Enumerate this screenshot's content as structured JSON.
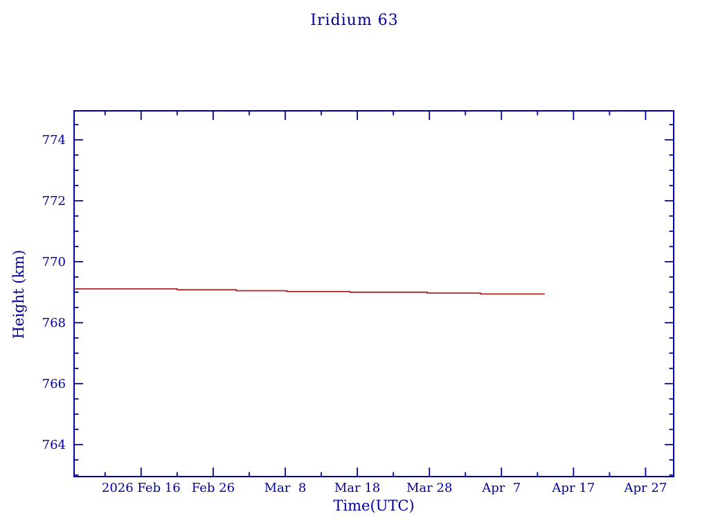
{
  "page": {
    "background": "#ffffff",
    "accent_blue": "#0000a0",
    "series_red": "#b22222"
  },
  "chart_data": {
    "type": "line",
    "title": "Iridium 63",
    "xlabel": "Time(UTC)",
    "ylabel": "Height (km)",
    "ylim": [
      762.95,
      774.95
    ],
    "y_major_ticks": [
      764,
      766,
      768,
      770,
      772,
      774
    ],
    "y_minor_step": 0.5,
    "x_unit": "days since 2026 Feb 16",
    "xlim_days": [
      -9.3,
      73.9
    ],
    "x_major_ticks": [
      {
        "day": 0,
        "label": "2026 Feb 16"
      },
      {
        "day": 10,
        "label": "Feb 26"
      },
      {
        "day": 20,
        "label": "Mar  8"
      },
      {
        "day": 30,
        "label": "Mar 18"
      },
      {
        "day": 40,
        "label": "Mar 28"
      },
      {
        "day": 50,
        "label": "Apr  7"
      },
      {
        "day": 60,
        "label": "Apr 17"
      },
      {
        "day": 70,
        "label": "Apr 27"
      }
    ],
    "x_minor_step_days": 5,
    "grid": false,
    "legend": "none",
    "series": [
      {
        "name": "Iridium 63 height",
        "color": "#b22222",
        "points_day_km": [
          [
            -9.3,
            769.11
          ],
          [
            5,
            769.11
          ],
          [
            5,
            769.08
          ],
          [
            13.2,
            769.08
          ],
          [
            13.2,
            769.05
          ],
          [
            20.2,
            769.05
          ],
          [
            20.2,
            769.02
          ],
          [
            29,
            769.02
          ],
          [
            29,
            769.0
          ],
          [
            39.7,
            769.0
          ],
          [
            39.7,
            768.97
          ],
          [
            47.1,
            768.97
          ],
          [
            47.1,
            768.94
          ],
          [
            56,
            768.94
          ]
        ]
      }
    ]
  }
}
